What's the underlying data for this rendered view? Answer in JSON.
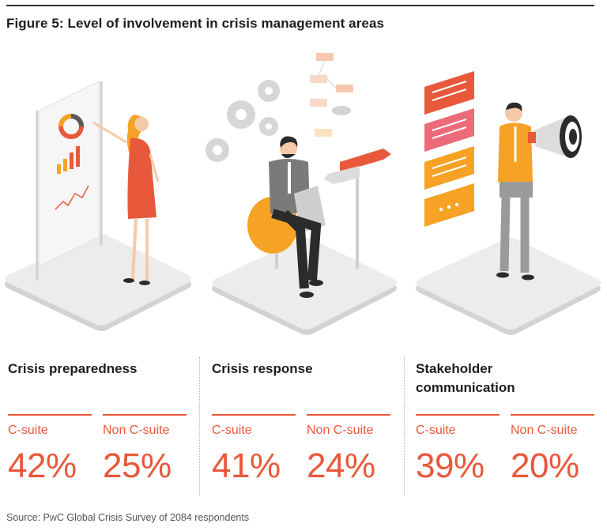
{
  "figure": {
    "title": "Figure 5: Level of involvement in crisis management areas",
    "source": "Source: PwC Global Crisis Survey of 2084 respondents"
  },
  "icons": [
    "presentation-board-icon",
    "person-with-laptop-icon",
    "megaphone-speaker-icon",
    "gears-icon",
    "flowchart-icon",
    "speech-bubbles-icon",
    "signpost-icon"
  ],
  "colors": {
    "accent": "#e8583a",
    "platform": "#e9e9e9",
    "orange": "#f5a225",
    "title": "#1d1d1d"
  },
  "chart_data": {
    "type": "table",
    "title": "Figure 5: Level of involvement in crisis management areas",
    "categories": [
      "Crisis preparedness",
      "Crisis response",
      "Stakeholder communication"
    ],
    "series": [
      {
        "name": "C-suite",
        "values": [
          42,
          41,
          39
        ],
        "display": [
          "42%",
          "41%",
          "39%"
        ]
      },
      {
        "name": "Non C-suite",
        "values": [
          25,
          24,
          20
        ],
        "display": [
          "25%",
          "24%",
          "20%"
        ]
      }
    ],
    "unit": "%"
  }
}
